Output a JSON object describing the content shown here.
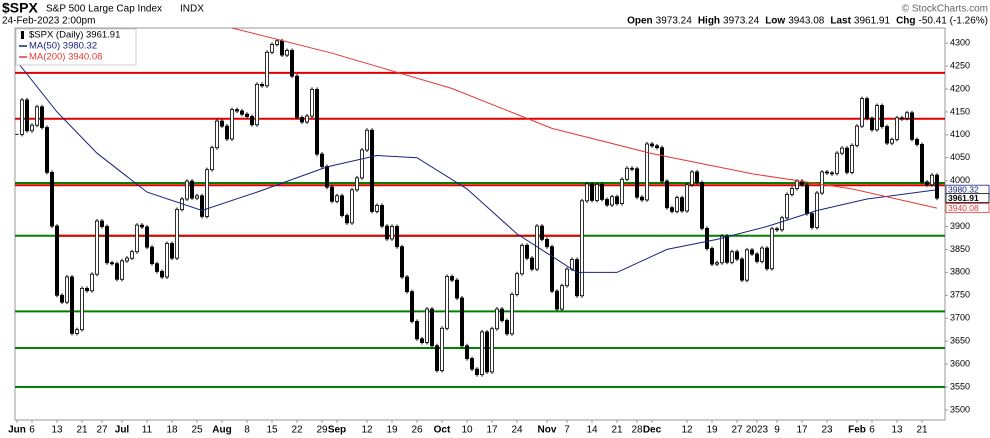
{
  "chart_data": {
    "type": "stock",
    "header": {
      "symbol": "$SPX",
      "name": "S&P 500 Large Cap Index",
      "exchange": "INDX",
      "date": "24-Feb-2023 2:00pm",
      "credit": "© StockCharts.com",
      "quote": [
        {
          "label": "Open",
          "value": "3973.24"
        },
        {
          "label": "High",
          "value": "3973.24"
        },
        {
          "label": "Low",
          "value": "3943.08"
        },
        {
          "label": "Last",
          "value": "3961.91"
        },
        {
          "label": "Chg",
          "value": "-50.41 (-1.26%)"
        }
      ]
    },
    "xlim": [
      -0.4,
      185.6
    ],
    "ylim": [
      3478,
      4333
    ],
    "yticks": [
      3500,
      3550,
      3600,
      3650,
      3700,
      3750,
      3800,
      3850,
      3900,
      3950,
      4000,
      4050,
      4100,
      4150,
      4200,
      4250,
      4300
    ],
    "xticks": [
      {
        "value": 0,
        "label": "Jun"
      },
      {
        "value": 3,
        "label": "6"
      },
      {
        "value": 8,
        "label": "13"
      },
      {
        "value": 13,
        "label": "21"
      },
      {
        "value": 17,
        "label": "27"
      },
      {
        "value": 21,
        "label": "Jul"
      },
      {
        "value": 26,
        "label": "11"
      },
      {
        "value": 31,
        "label": "18"
      },
      {
        "value": 36,
        "label": "25"
      },
      {
        "value": 41,
        "label": "Aug"
      },
      {
        "value": 46,
        "label": "8"
      },
      {
        "value": 51,
        "label": "15"
      },
      {
        "value": 56,
        "label": "22"
      },
      {
        "value": 61,
        "label": "29"
      },
      {
        "value": 64,
        "label": "Sep"
      },
      {
        "value": 70,
        "label": "12"
      },
      {
        "value": 75,
        "label": "19"
      },
      {
        "value": 80,
        "label": "26"
      },
      {
        "value": 85,
        "label": "Oct"
      },
      {
        "value": 90,
        "label": "10"
      },
      {
        "value": 95,
        "label": "17"
      },
      {
        "value": 100,
        "label": "24"
      },
      {
        "value": 106,
        "label": "Nov"
      },
      {
        "value": 110,
        "label": "7"
      },
      {
        "value": 115,
        "label": "14"
      },
      {
        "value": 120,
        "label": "21"
      },
      {
        "value": 124,
        "label": "28"
      },
      {
        "value": 127,
        "label": "Dec"
      },
      {
        "value": 134,
        "label": "12"
      },
      {
        "value": 139,
        "label": "19"
      },
      {
        "value": 144,
        "label": "27"
      },
      {
        "value": 148,
        "label": "2023"
      },
      {
        "value": 152,
        "label": "9"
      },
      {
        "value": 157,
        "label": "17"
      },
      {
        "value": 162,
        "label": "23"
      },
      {
        "value": 168,
        "label": "Feb"
      },
      {
        "value": 171,
        "label": "6"
      },
      {
        "value": 176,
        "label": "13"
      },
      {
        "value": 181,
        "label": "21"
      }
    ],
    "grid": false,
    "series": [
      {
        "name": "$SPX (Daily) 3961.91",
        "color": "#000000",
        "values": [
          4101,
          4176,
          4109,
          4121,
          4161,
          4116,
          4018,
          3901,
          3750,
          3735,
          3790,
          3667,
          3675,
          3765,
          3760,
          3796,
          3912,
          3900,
          3821,
          3819,
          3785,
          3825,
          3831,
          3845,
          3903,
          3899,
          3855,
          3819,
          3802,
          3790,
          3863,
          3831,
          3937,
          3960,
          3999,
          3962,
          3967,
          3922,
          4024,
          4072,
          4130,
          4119,
          4091,
          4155,
          4152,
          4145,
          4140,
          4122,
          4210,
          4207,
          4280,
          4297,
          4305,
          4274,
          4284,
          4228,
          4138,
          4128,
          4141,
          4199,
          4058,
          4031,
          3986,
          3955,
          3967,
          3924,
          3908,
          3980,
          4006,
          4067,
          4110,
          3933,
          3946,
          3901,
          3873,
          3900,
          3856,
          3790,
          3758,
          3693,
          3655,
          3647,
          3720,
          3640,
          3586,
          3678,
          3791,
          3783,
          3744,
          3640,
          3612,
          3589,
          3577,
          3670,
          3583,
          3677,
          3720,
          3695,
          3666,
          3752,
          3797,
          3859,
          3831,
          3807,
          3901,
          3872,
          3856,
          3759,
          3720,
          3771,
          3807,
          3828,
          3749,
          3956,
          3993,
          3957,
          3992,
          3959,
          3947,
          3965,
          3950,
          4003,
          4027,
          4026,
          3964,
          3958,
          4080,
          4076,
          4072,
          3999,
          3941,
          3933,
          3963,
          3934,
          3991,
          4019,
          3996,
          3896,
          3852,
          3818,
          3821,
          3879,
          3822,
          3845,
          3829,
          3783,
          3849,
          3840,
          3824,
          3853,
          3808,
          3895,
          3893,
          3919,
          3970,
          3983,
          3999,
          3991,
          3928,
          3898,
          3973,
          4019,
          4017,
          4016,
          4060,
          4071,
          4018,
          4077,
          4119,
          4179,
          4136,
          4111,
          4164,
          4118,
          4082,
          4090,
          4137,
          4136,
          4148,
          4090,
          4079,
          3997,
          3991,
          4012,
          3961.91
        ]
      },
      {
        "name": "MA(50) 3980.32",
        "color": "#1a237e",
        "x": [
          0,
          8,
          16,
          26,
          37,
          48,
          62,
          72,
          80,
          90,
          100,
          112,
          120,
          130,
          140,
          150,
          160,
          170,
          184
        ],
        "values": [
          4260,
          4150,
          4060,
          3975,
          3935,
          3975,
          4030,
          4055,
          4050,
          3982,
          3884,
          3800,
          3800,
          3850,
          3872,
          3900,
          3935,
          3960,
          3980.32
        ]
      },
      {
        "name": "MA(200) 3940.08",
        "color": "#e53935",
        "x": [
          43,
          63,
          87,
          107,
          127,
          147,
          167,
          184
        ],
        "values": [
          4333,
          4278,
          4201,
          4114,
          4059,
          4015,
          3982,
          3940.08
        ]
      }
    ],
    "levels": [
      {
        "value": 4235,
        "color": "#e00000"
      },
      {
        "value": 4135,
        "color": "#e00000"
      },
      {
        "value": 3995,
        "color": "#008000"
      },
      {
        "value": 3990,
        "color": "#e00000"
      },
      {
        "value": 3880,
        "color": "#008000"
      },
      {
        "value": 3880,
        "color": "#e00000",
        "x": [
          8,
          113
        ]
      },
      {
        "value": 3715,
        "color": "#008000"
      },
      {
        "value": 3635,
        "color": "#008000"
      },
      {
        "value": 3550,
        "color": "#008000"
      }
    ],
    "end_labels": [
      {
        "value": 3980.32,
        "label": "3980.32",
        "color": "#1a237e"
      },
      {
        "value": 3961.91,
        "label": "3961.91",
        "color": "#000000"
      },
      {
        "value": 3940.08,
        "label": "3940.08",
        "color": "#e53935"
      }
    ]
  }
}
